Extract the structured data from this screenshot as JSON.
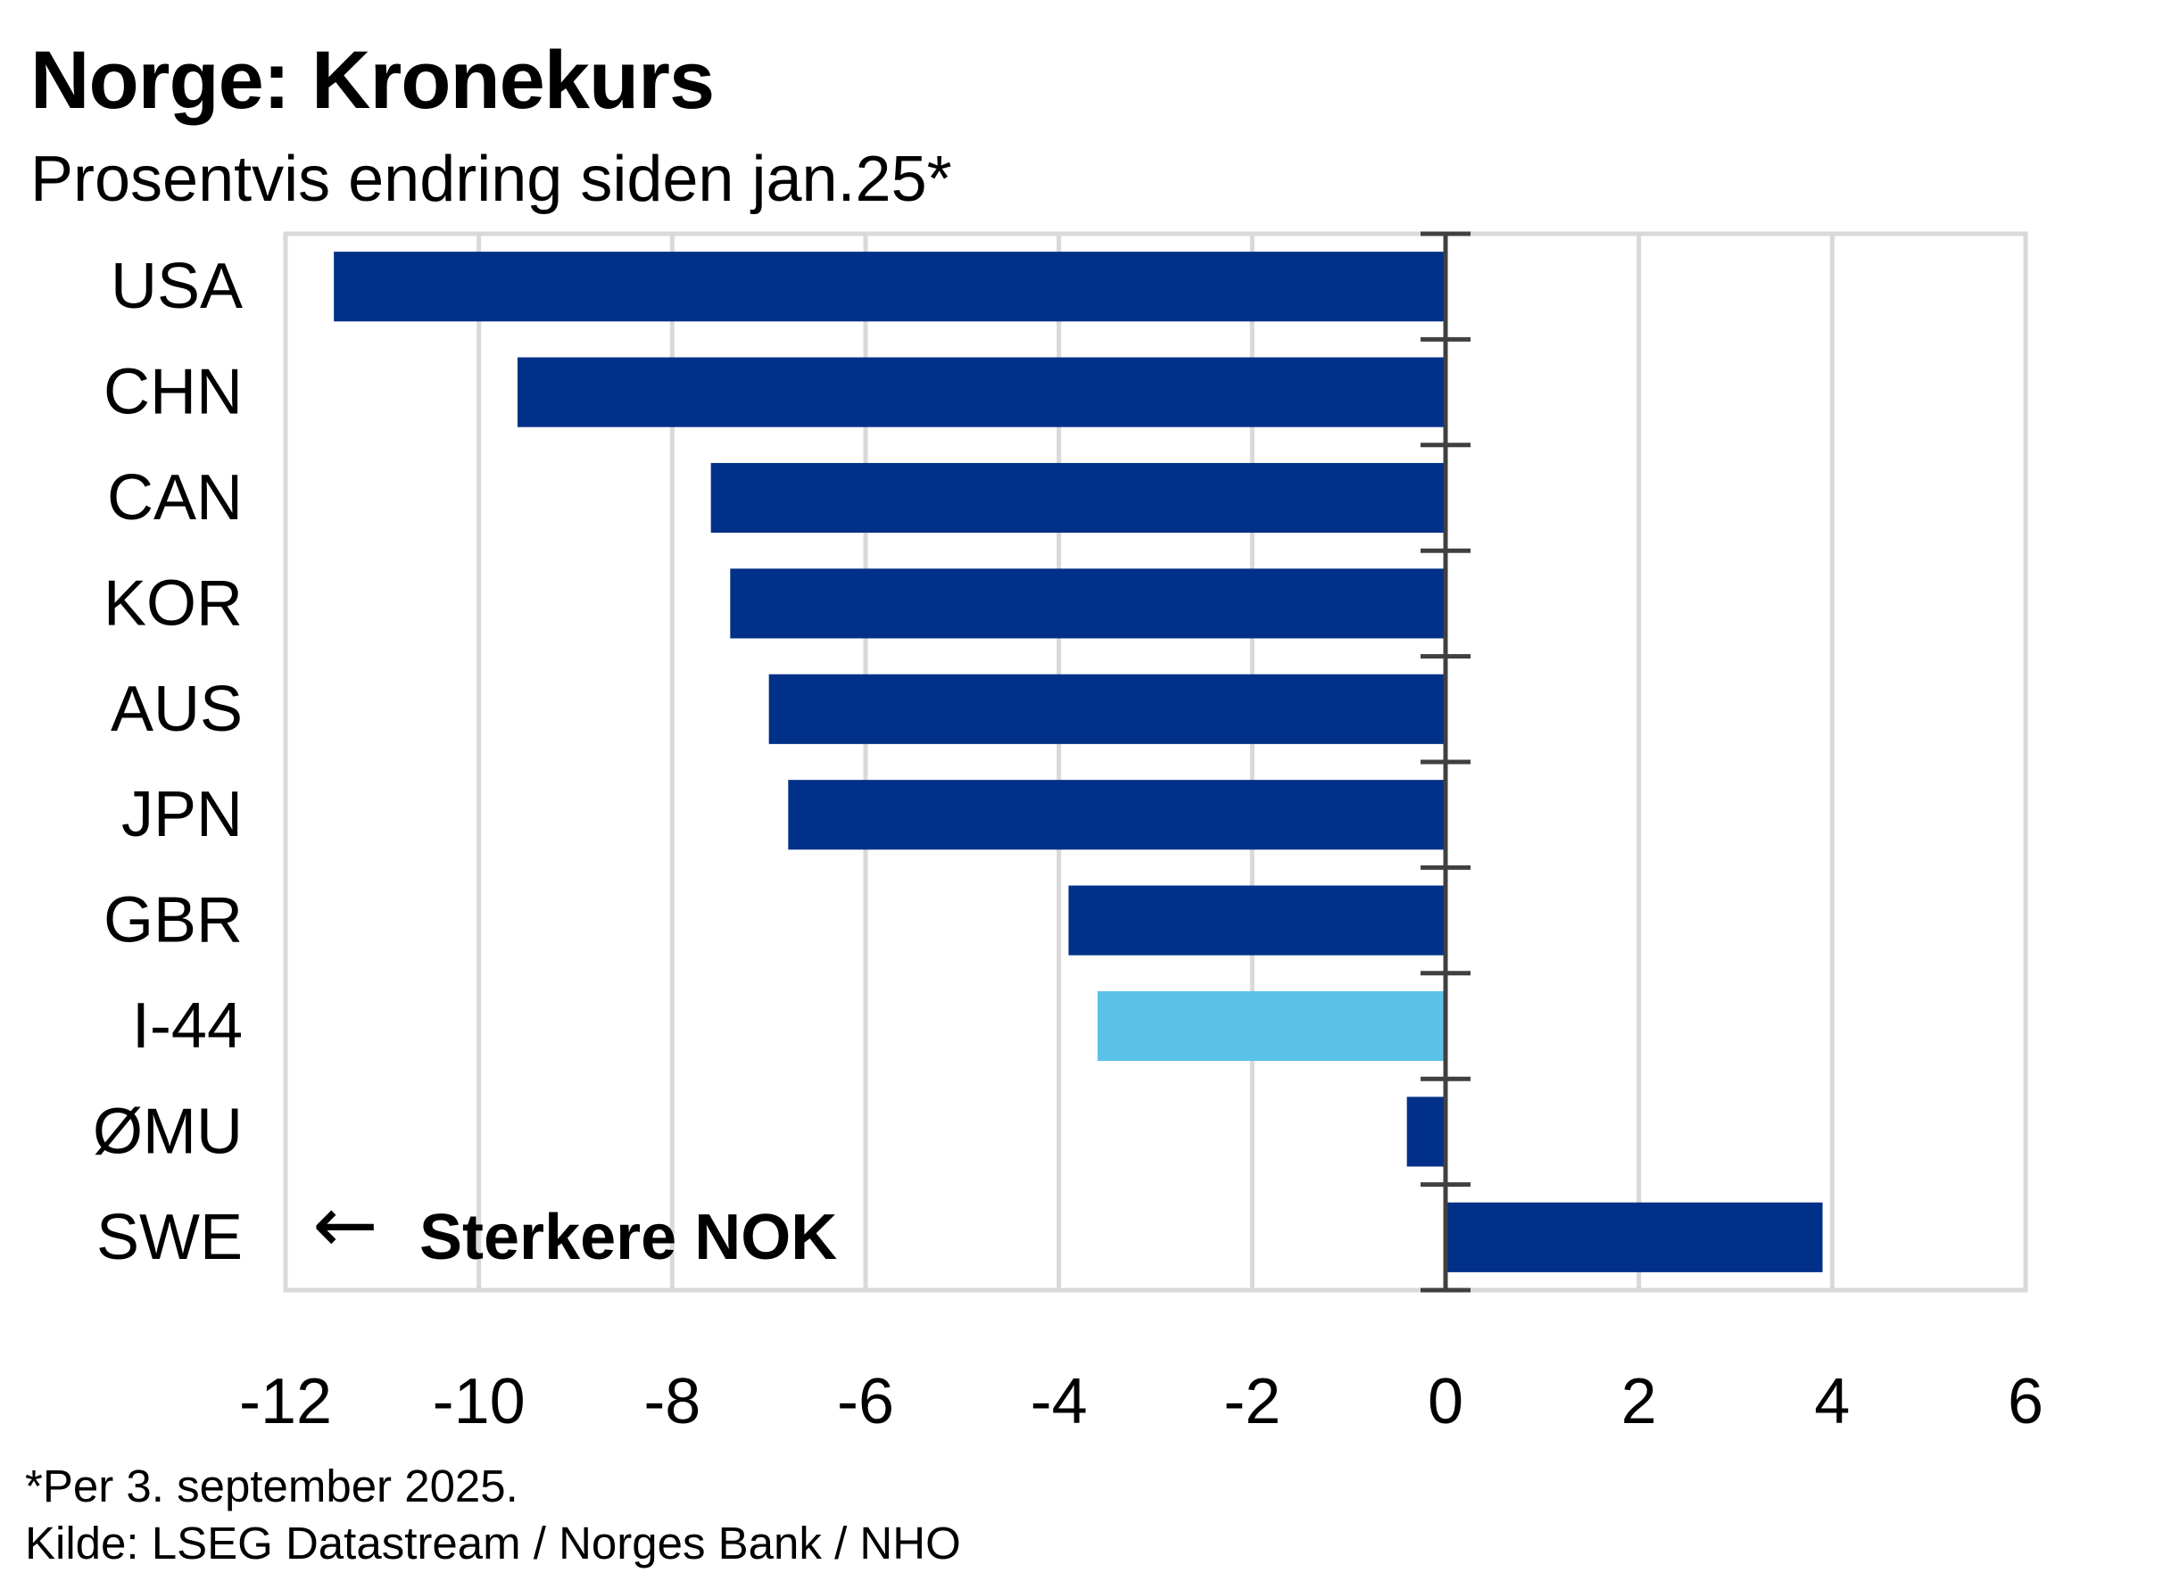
{
  "title": "Norge:  Kronekurs",
  "subtitle": "Prosentvis endring siden jan.25*",
  "footnote": "*Per  3. september 2025.",
  "source": "Kilde: LSEG Datastream / Norges Bank / NHO",
  "annotation": {
    "arrow": "←",
    "text": "Sterkere NOK"
  },
  "colors": {
    "bar": "#003087",
    "highlight": "#5bc2e7",
    "grid": "#d9d9d9",
    "axis": "#404040"
  },
  "chart_data": {
    "type": "bar",
    "orientation": "horizontal",
    "categories": [
      "USA",
      "CHN",
      "CAN",
      "KOR",
      "AUS",
      "JPN",
      "GBR",
      "I-44",
      "ØMU",
      "SWE"
    ],
    "values": [
      -11.5,
      -9.6,
      -7.6,
      -7.4,
      -7.0,
      -6.8,
      -3.9,
      -3.6,
      -0.4,
      3.9
    ],
    "highlight": [
      "I-44"
    ],
    "xlim": [
      -12,
      6
    ],
    "xticks": [
      "-12",
      "-10",
      "-8",
      "-6",
      "-4",
      "-2",
      "0",
      "2",
      "4",
      "6"
    ],
    "grid": true
  }
}
